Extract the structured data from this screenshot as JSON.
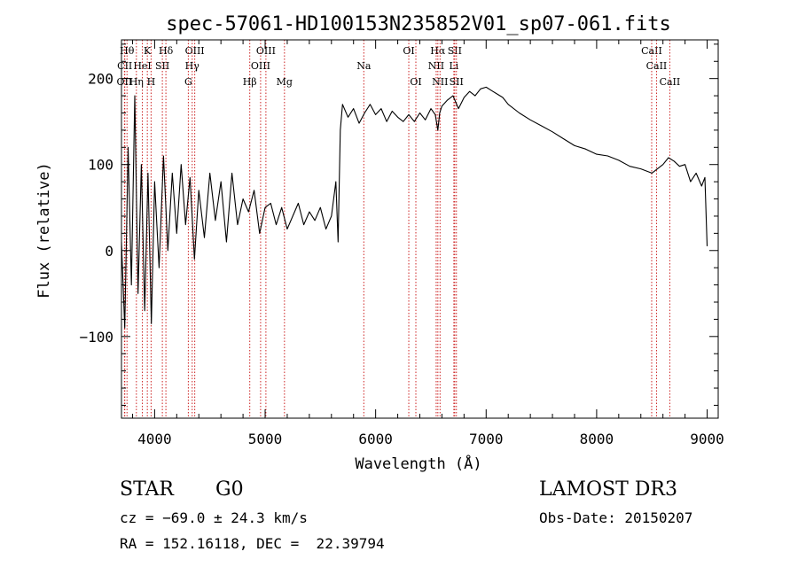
{
  "chart_data": {
    "type": "line",
    "title": "spec-57061-HD100153N235852V01_sp07-061.fits",
    "xlabel": "Wavelength (Å)",
    "ylabel": "Flux (relative)",
    "xlim": [
      3700,
      9100
    ],
    "ylim": [
      -195,
      245
    ],
    "xticks": [
      4000,
      5000,
      6000,
      7000,
      8000,
      9000
    ],
    "yticks": [
      -100,
      0,
      100,
      200
    ],
    "xtick_labels": [
      "4000",
      "5000",
      "6000",
      "7000",
      "8000",
      "9000"
    ],
    "ytick_labels": [
      "−100",
      "0",
      "100",
      "200"
    ],
    "grid": false,
    "legend": "none",
    "series": [
      {
        "name": "flux",
        "x": [
          3700,
          3730,
          3760,
          3790,
          3820,
          3850,
          3880,
          3910,
          3940,
          3970,
          4000,
          4040,
          4080,
          4120,
          4160,
          4200,
          4240,
          4280,
          4320,
          4360,
          4400,
          4450,
          4500,
          4550,
          4600,
          4650,
          4700,
          4750,
          4800,
          4850,
          4900,
          4950,
          5000,
          5050,
          5100,
          5150,
          5200,
          5250,
          5300,
          5350,
          5400,
          5450,
          5500,
          5550,
          5600,
          5640,
          5660,
          5680,
          5700,
          5750,
          5800,
          5850,
          5900,
          5950,
          6000,
          6050,
          6100,
          6150,
          6200,
          6250,
          6300,
          6350,
          6400,
          6450,
          6500,
          6540,
          6563,
          6580,
          6600,
          6650,
          6700,
          6750,
          6800,
          6850,
          6900,
          6950,
          7000,
          7050,
          7100,
          7150,
          7200,
          7300,
          7400,
          7500,
          7600,
          7700,
          7800,
          7900,
          8000,
          8100,
          8200,
          8300,
          8400,
          8500,
          8600,
          8650,
          8700,
          8750,
          8800,
          8850,
          8900,
          8950,
          8980,
          9000
        ],
        "y": [
          10,
          -90,
          120,
          -40,
          180,
          -50,
          100,
          -70,
          90,
          -85,
          80,
          -20,
          110,
          0,
          90,
          20,
          100,
          30,
          85,
          -10,
          70,
          15,
          90,
          35,
          80,
          10,
          90,
          30,
          60,
          45,
          70,
          20,
          50,
          55,
          30,
          50,
          25,
          40,
          55,
          30,
          45,
          35,
          50,
          25,
          40,
          80,
          10,
          140,
          170,
          155,
          165,
          148,
          160,
          170,
          158,
          165,
          150,
          162,
          155,
          150,
          158,
          150,
          160,
          152,
          165,
          158,
          140,
          160,
          168,
          175,
          180,
          165,
          178,
          185,
          180,
          188,
          190,
          186,
          182,
          178,
          170,
          160,
          152,
          145,
          138,
          130,
          122,
          118,
          112,
          110,
          105,
          98,
          95,
          90,
          100,
          108,
          104,
          98,
          100,
          80,
          90,
          75,
          85,
          5
        ]
      }
    ],
    "line_markers": [
      {
        "label": "Hθ",
        "x": 3750,
        "row": 1
      },
      {
        "label": "K",
        "x": 3934,
        "row": 1
      },
      {
        "label": "Hδ",
        "x": 4102,
        "row": 1
      },
      {
        "label": "OIII",
        "x": 4363,
        "row": 1
      },
      {
        "label": "OIII",
        "x": 5007,
        "row": 1
      },
      {
        "label": "OI",
        "x": 6300,
        "row": 1
      },
      {
        "label": "Hα",
        "x": 6563,
        "row": 1
      },
      {
        "label": "SII",
        "x": 6716,
        "row": 1
      },
      {
        "label": "CaII",
        "x": 8498,
        "row": 1
      },
      {
        "label": "CII",
        "x": 3730,
        "row": 2
      },
      {
        "label": "HeI",
        "x": 3889,
        "row": 2
      },
      {
        "label": "SII",
        "x": 4070,
        "row": 2
      },
      {
        "label": "Hγ",
        "x": 4340,
        "row": 2
      },
      {
        "label": "OIII",
        "x": 4959,
        "row": 2
      },
      {
        "label": "Na",
        "x": 5893,
        "row": 2
      },
      {
        "label": "NII",
        "x": 6548,
        "row": 2
      },
      {
        "label": "Li",
        "x": 6708,
        "row": 2
      },
      {
        "label": "CaII",
        "x": 8542,
        "row": 2
      },
      {
        "label": "OII",
        "x": 3727,
        "row": 3
      },
      {
        "label": "Hη",
        "x": 3835,
        "row": 3
      },
      {
        "label": "H",
        "x": 3968,
        "row": 3
      },
      {
        "label": "G",
        "x": 4305,
        "row": 3
      },
      {
        "label": "Hβ",
        "x": 4861,
        "row": 3
      },
      {
        "label": "Mg",
        "x": 5175,
        "row": 3
      },
      {
        "label": "OI",
        "x": 6364,
        "row": 3
      },
      {
        "label": "NII",
        "x": 6583,
        "row": 3
      },
      {
        "label": "SII",
        "x": 6731,
        "row": 3
      },
      {
        "label": "CaII",
        "x": 8662,
        "row": 3
      }
    ]
  },
  "info": {
    "class": "STAR",
    "subclass": "G0",
    "survey": "LAMOST DR3",
    "cz": "cz = −69.0 ± 24.3 km/s",
    "obs_date": "Obs-Date: 20150207",
    "radec": "RA = 152.16118, DEC =  22.39794"
  }
}
